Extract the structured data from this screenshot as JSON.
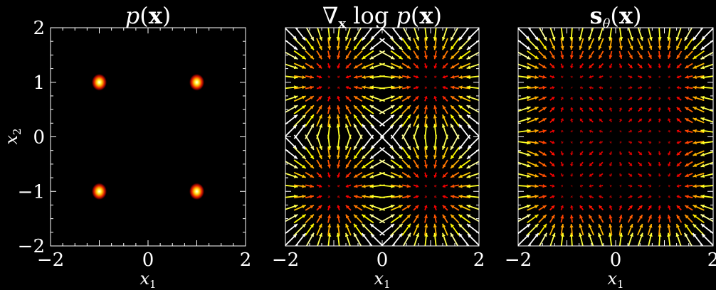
{
  "chart_data": [
    {
      "type": "heatmap",
      "title": "p(x)",
      "xlabel": "x1",
      "ylabel": "x2",
      "xlim": [
        -2,
        2
      ],
      "ylim": [
        -2,
        2
      ],
      "xticks": [
        -2,
        0,
        2
      ],
      "yticks": [
        -2,
        -1,
        0,
        1,
        2
      ],
      "xtick_labels": [
        "−2",
        "0",
        "2"
      ],
      "ytick_labels": [
        "−2",
        "−1",
        "0",
        "1",
        "2"
      ],
      "colormap": "hot",
      "mixture_means": [
        [
          -1,
          1
        ],
        [
          1,
          1
        ],
        [
          -1,
          -1
        ],
        [
          1,
          -1
        ]
      ],
      "mixture_std": 0.1
    },
    {
      "type": "quiver",
      "title": "∇x log p(x)",
      "xlabel": "x1",
      "xlim": [
        -2,
        2
      ],
      "ylim": [
        -2,
        2
      ],
      "xticks": [
        -2,
        0,
        2
      ],
      "xtick_labels": [
        "−2",
        "0",
        "2"
      ],
      "grid_n": 20,
      "colormap": "hot",
      "field": "true_score"
    },
    {
      "type": "quiver",
      "title": "sθ(x)",
      "xlabel": "x1",
      "xlim": [
        -2,
        2
      ],
      "ylim": [
        -2,
        2
      ],
      "xticks": [
        -2,
        0,
        2
      ],
      "xtick_labels": [
        "−2",
        "0",
        "2"
      ],
      "grid_n": 20,
      "colormap": "hot",
      "field": "learned_score"
    }
  ],
  "colors": {
    "background": "#000000",
    "frame": "#ffffff"
  }
}
